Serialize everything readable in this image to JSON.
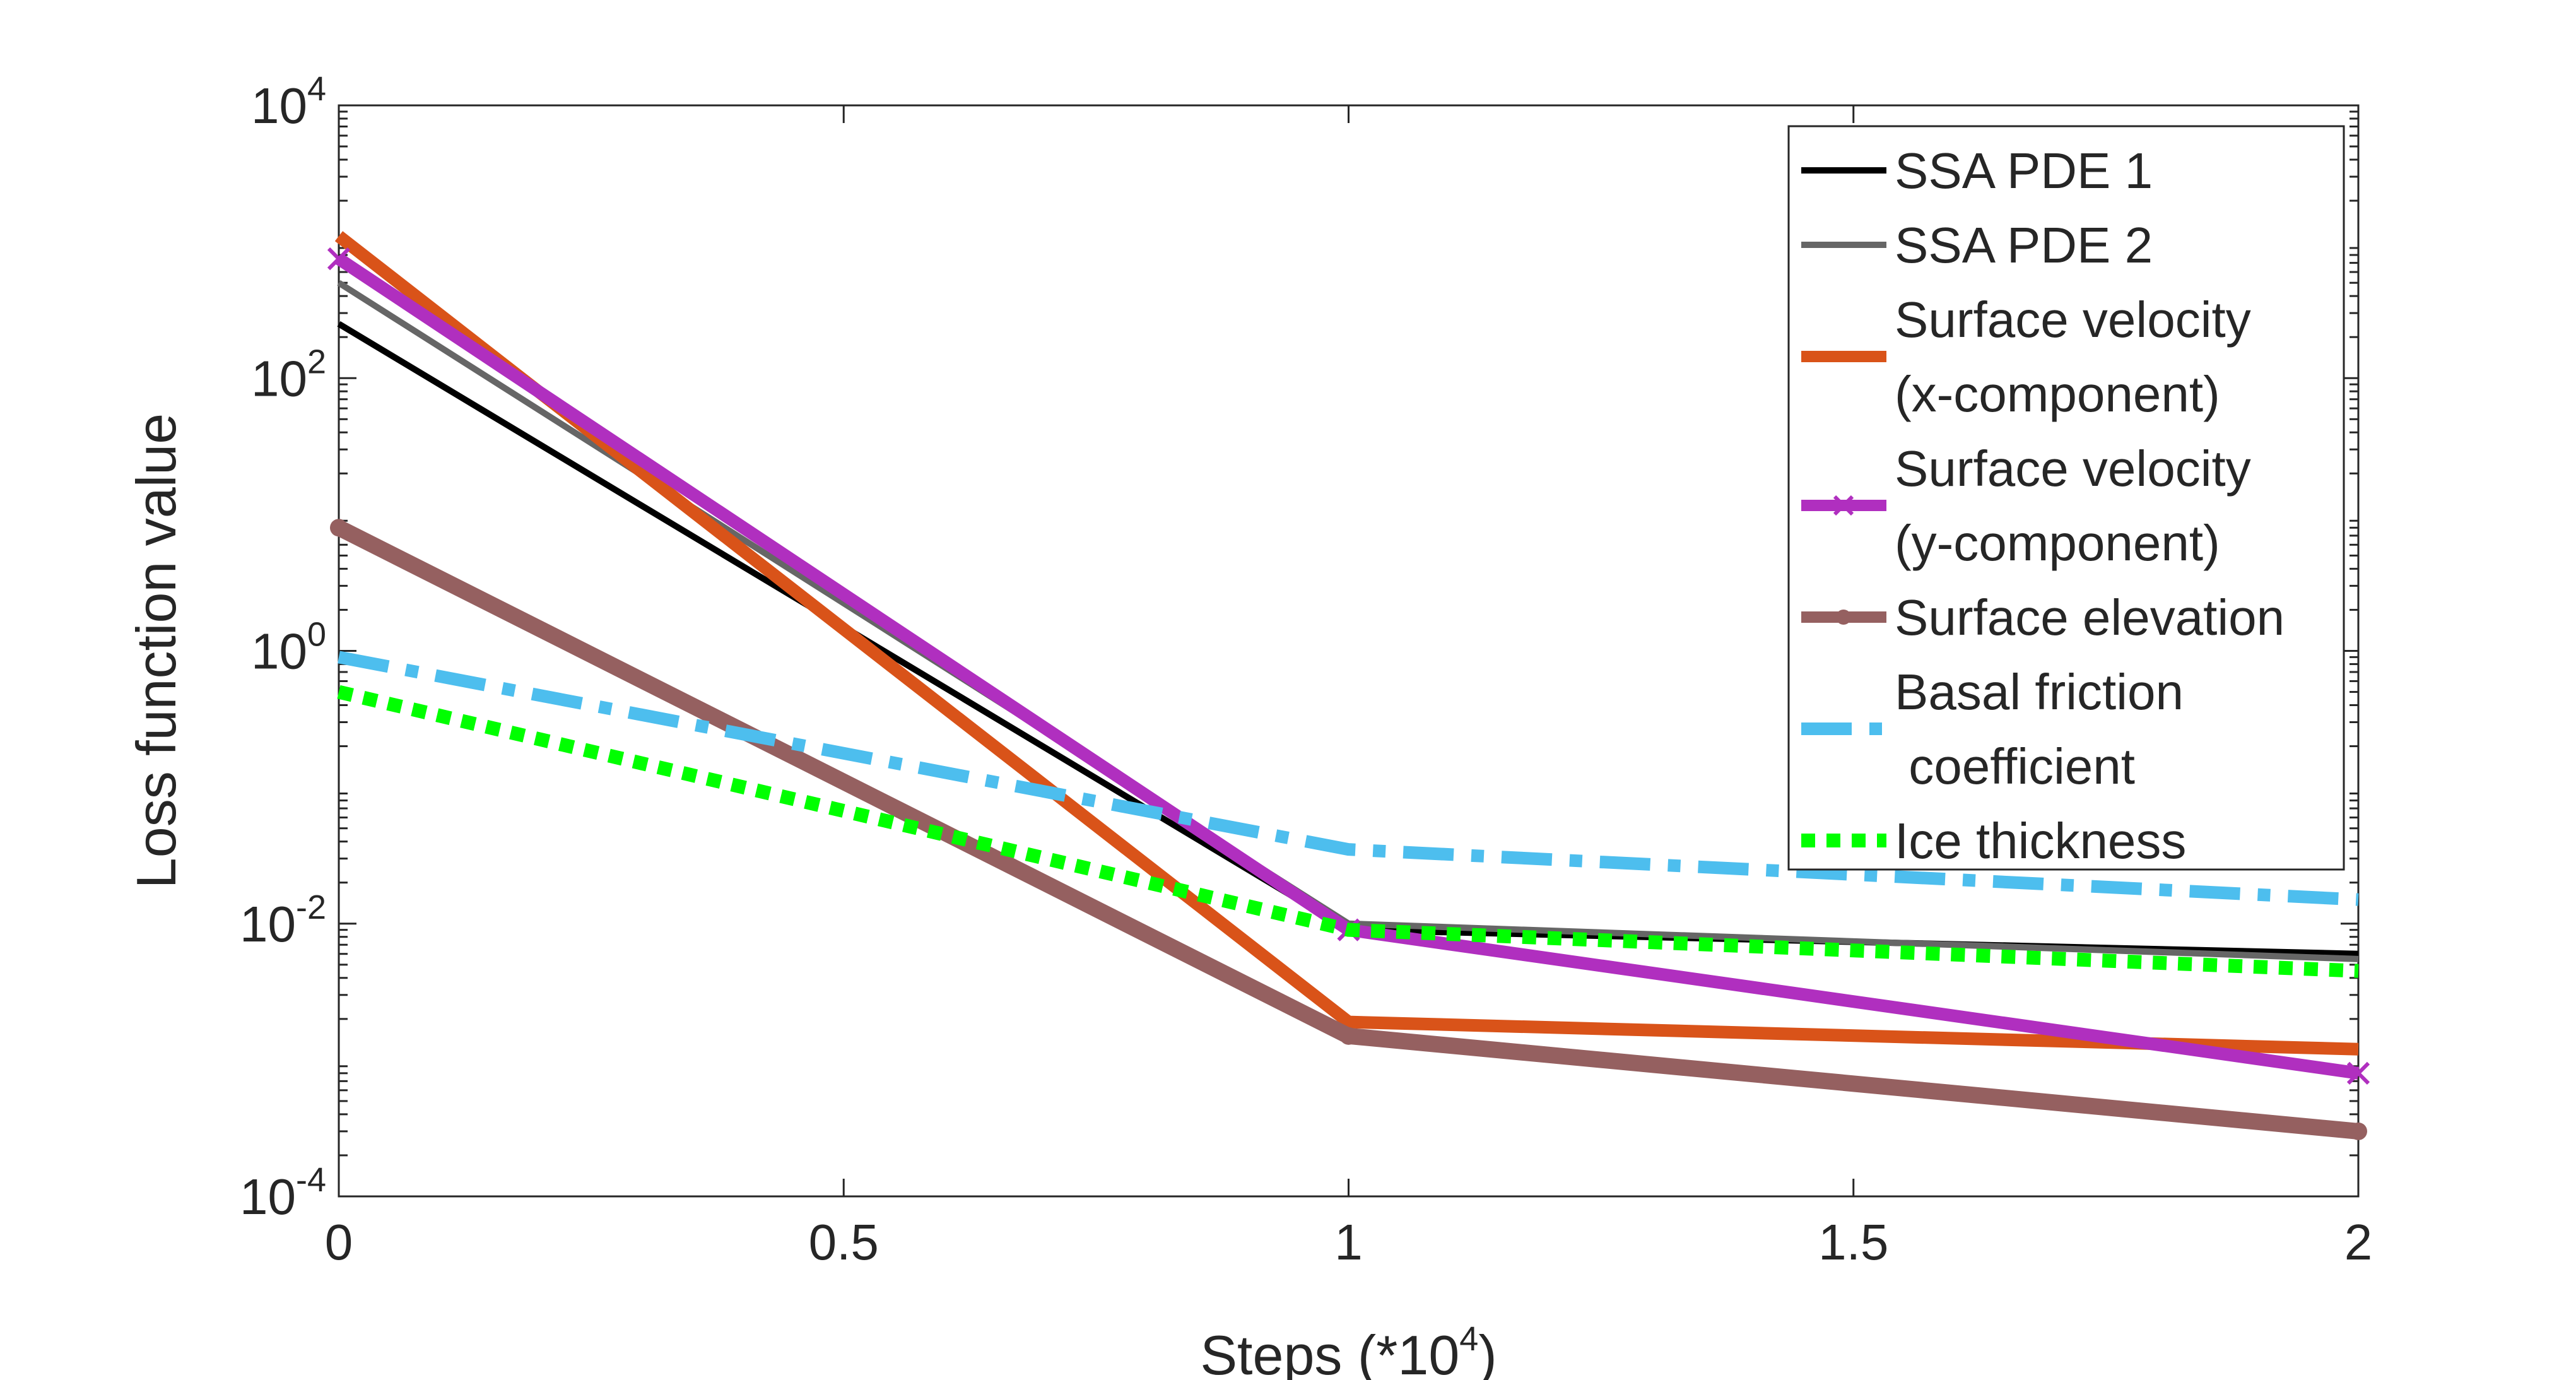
{
  "chart_data": {
    "type": "line",
    "title": "",
    "xlabel": "Steps (*10",
    "xlabel_exp": "4",
    "xlabel_suffix": ")",
    "ylabel": "Loss function value",
    "xlim": [
      0,
      2
    ],
    "ylim": [
      0.0001,
      10000
    ],
    "yscale": "log",
    "grid": false,
    "legend_position": "top-right",
    "x_ticks": [
      "0",
      "0.5",
      "1",
      "1.5",
      "2"
    ],
    "y_ticks": [
      {
        "base": "10",
        "exp": "-4"
      },
      {
        "base": "10",
        "exp": "-2"
      },
      {
        "base": "10",
        "exp": "0"
      },
      {
        "base": "10",
        "exp": "2"
      },
      {
        "base": "10",
        "exp": "4"
      }
    ],
    "x": [
      0,
      1,
      2
    ],
    "series": [
      {
        "name": "SSA PDE 1",
        "values": [
          250,
          0.009,
          0.006
        ],
        "color": "#000000",
        "dash": "solid",
        "marker": "none"
      },
      {
        "name": "SSA PDE 2",
        "values": [
          500,
          0.01,
          0.0055
        ],
        "color": "#666666",
        "dash": "solid",
        "marker": "none"
      },
      {
        "name": "Surface velocity\n(x-component)",
        "values": [
          1100,
          0.0019,
          0.0012
        ],
        "color": "#D95319",
        "dash": "solid",
        "marker": "none"
      },
      {
        "name": "Surface velocity\n(y-component)",
        "values": [
          750,
          0.009,
          0.0008
        ],
        "color": "#B02FBF",
        "dash": "solid",
        "marker": "x"
      },
      {
        "name": "Surface elevation",
        "values": [
          8,
          0.0015,
          0.0003
        ],
        "color": "#956060",
        "dash": "solid",
        "marker": "dot"
      },
      {
        "name": "Basal friction\n coefficient",
        "values": [
          0.9,
          0.035,
          0.015
        ],
        "color": "#4DBEEE",
        "dash": "dashdot",
        "marker": "none"
      },
      {
        "name": "Ice thickness",
        "values": [
          0.5,
          0.009,
          0.0045
        ],
        "color": "#00FF00",
        "dash": "dotted",
        "marker": "none"
      }
    ]
  }
}
